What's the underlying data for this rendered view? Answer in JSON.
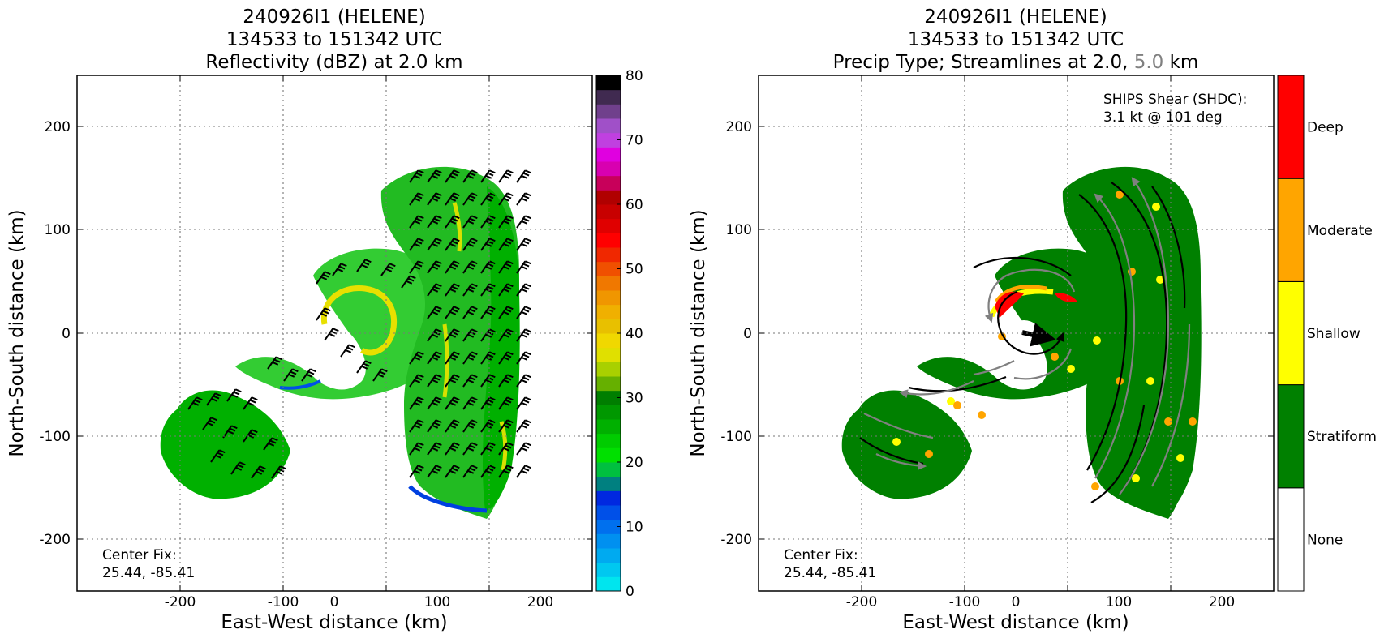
{
  "chart_data": [
    {
      "type": "heatmap",
      "panel": "left",
      "title_lines": [
        "240926I1 (HELENE)",
        "134533 to 151342 UTC",
        "Reflectivity (dBZ) at 2.0 km"
      ],
      "xlabel": "East-West distance (km)",
      "ylabel": "North-South distance (km)",
      "xlim": [
        -250,
        250
      ],
      "ylim": [
        -250,
        250
      ],
      "xticks": [
        -200,
        -100,
        0,
        100,
        200
      ],
      "yticks": [
        -200,
        -100,
        0,
        100,
        200
      ],
      "grid": true,
      "annotation": {
        "line1": "Center Fix:",
        "line2": "25.44, -85.41"
      },
      "colorbar": {
        "min": 0,
        "max": 80,
        "ticks": [
          0,
          10,
          20,
          30,
          40,
          50,
          60,
          70,
          80
        ],
        "colors": [
          "#00e5ee",
          "#00c8f0",
          "#00aaf0",
          "#0090f0",
          "#0070ee",
          "#0050e8",
          "#0028e0",
          "#008080",
          "#00c040",
          "#00e000",
          "#00cc00",
          "#00b000",
          "#009800",
          "#007e00",
          "#66b000",
          "#a8d000",
          "#e0e000",
          "#f0d800",
          "#e8c000",
          "#f0b000",
          "#f09600",
          "#f07800",
          "#f05000",
          "#f02800",
          "#ff0000",
          "#e00000",
          "#c80000",
          "#b00000",
          "#c8005a",
          "#d800b0",
          "#e000e0",
          "#c040e0",
          "#a050c8",
          "#70408c",
          "#402a50",
          "#000000"
        ]
      },
      "features": {
        "left_band_color": "#00b000",
        "spiral_band_color": "#33cc33",
        "core_ring_color": "#e8e000",
        "main_band_color": "#22bb22",
        "low_edge_color": "#0040e0",
        "wind_barb_color": "#000000"
      }
    },
    {
      "type": "heatmap",
      "panel": "right",
      "title_lines": [
        "240926I1 (HELENE)",
        "134533 to 151342 UTC"
      ],
      "title_line3_prefix": "Precip Type; Streamlines at 2.0, ",
      "title_line3_highlight": "5.0",
      "title_line3_suffix": " km",
      "title_highlight_color": "#808080",
      "xlabel": "East-West distance (km)",
      "ylabel": "North-South distance (km)",
      "xlim": [
        -250,
        250
      ],
      "ylim": [
        -250,
        250
      ],
      "xticks": [
        -200,
        -100,
        0,
        100,
        200
      ],
      "yticks": [
        -200,
        -100,
        0,
        100,
        200
      ],
      "grid": true,
      "annotation": {
        "line1": "Center Fix:",
        "line2": "25.44, -85.41"
      },
      "shear": {
        "line1": "SHIPS Shear (SHDC):",
        "line2": "3.1 kt @ 101 deg",
        "speed_kt": 3.1,
        "direction_deg": 101
      },
      "categories": [
        {
          "label": "None",
          "color": "#ffffff"
        },
        {
          "label": "Stratiform",
          "color": "#008000"
        },
        {
          "label": "Shallow",
          "color": "#ffff00"
        },
        {
          "label": "Moderate",
          "color": "#ffa500"
        },
        {
          "label": "Deep",
          "color": "#ff0000"
        }
      ],
      "streamline_colors": {
        "level_2km": "#000000",
        "level_5km": "#808080"
      }
    }
  ]
}
